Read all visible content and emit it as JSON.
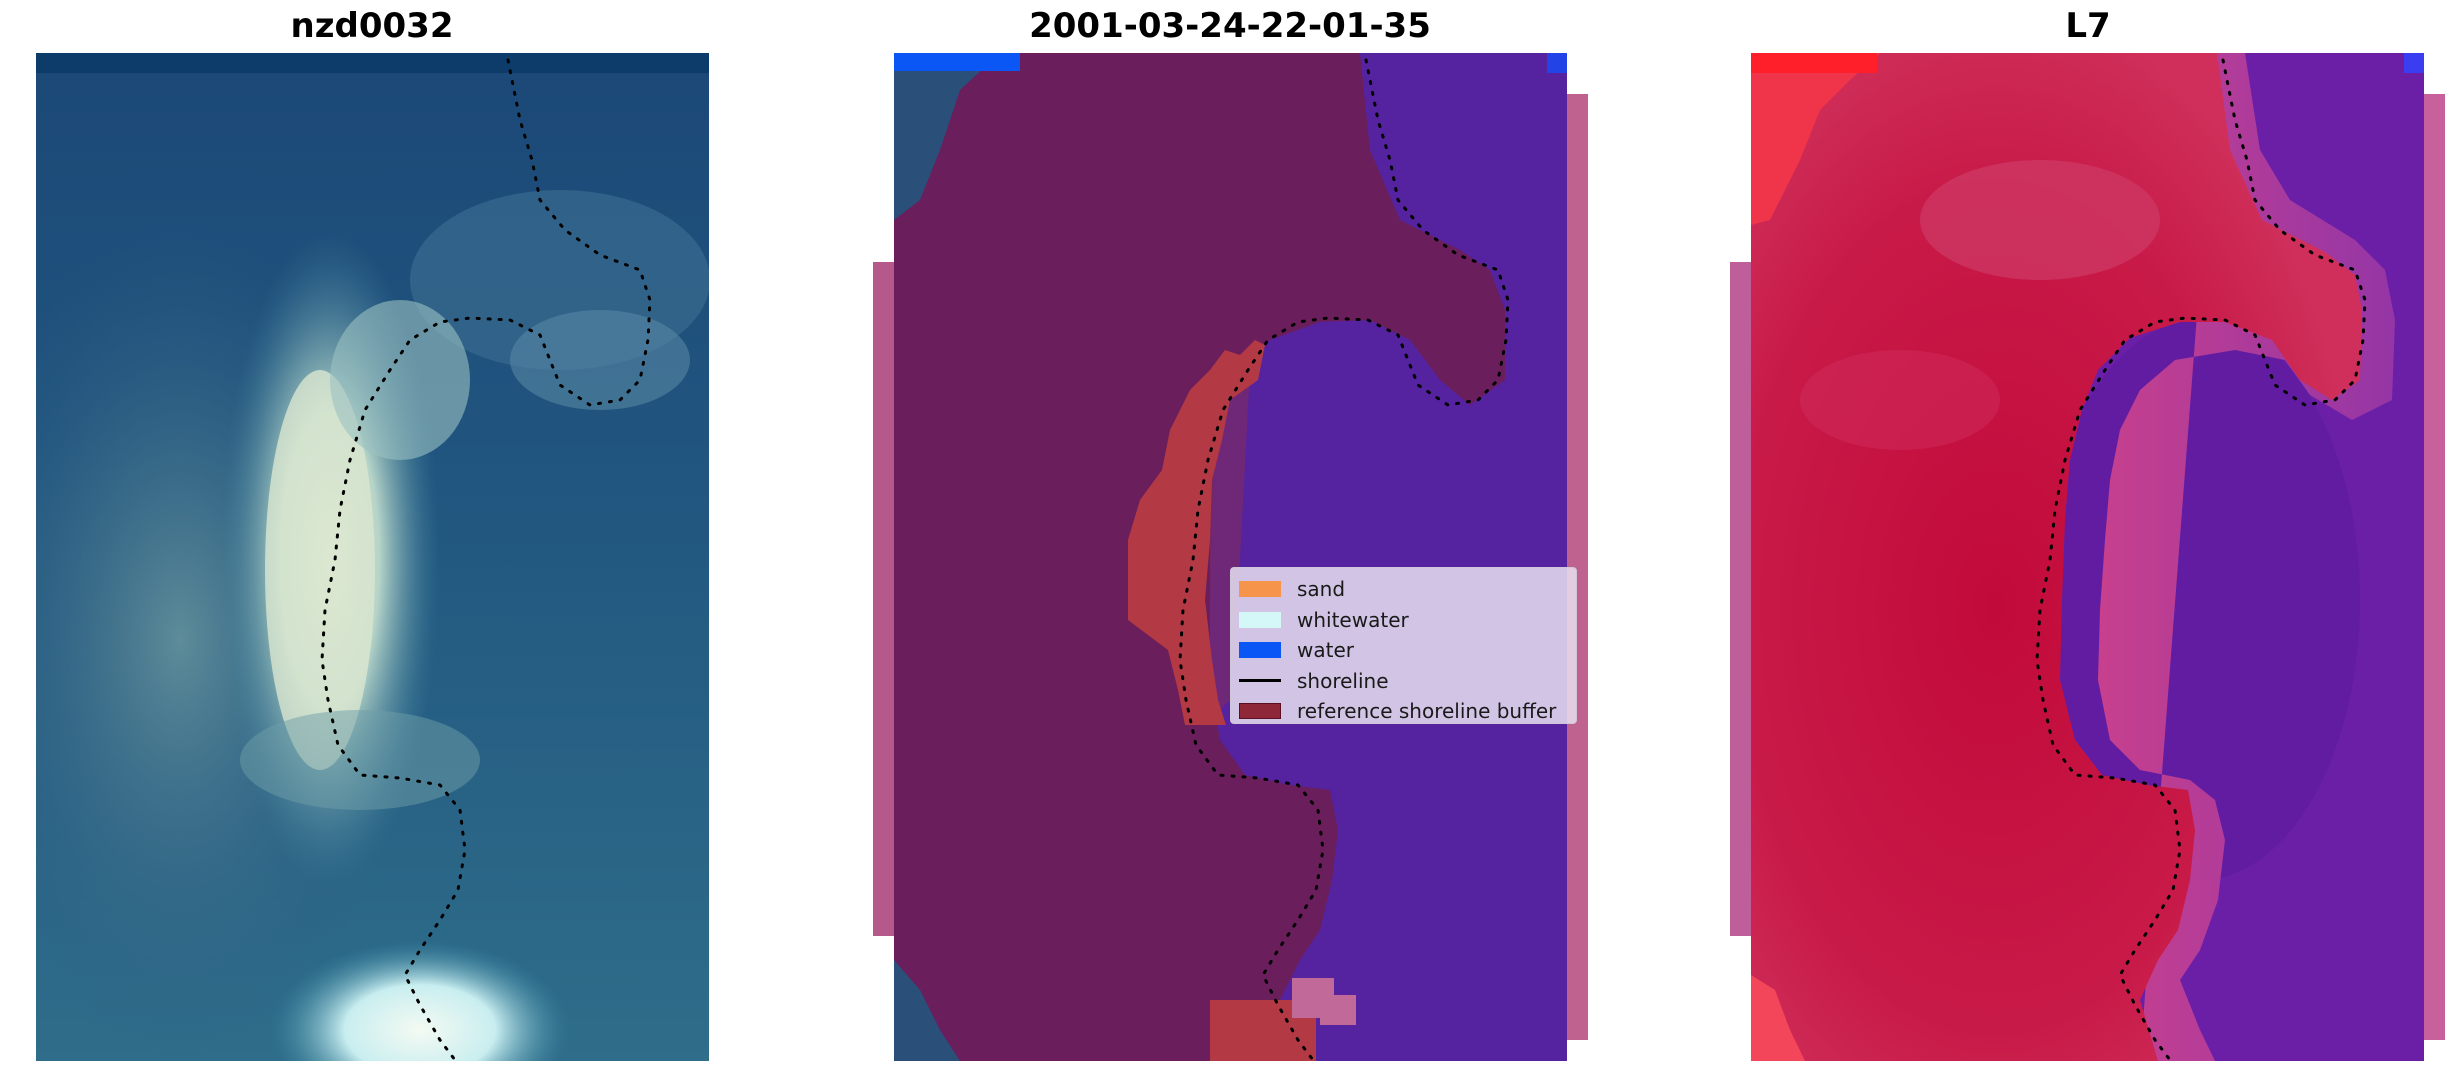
{
  "panels": [
    {
      "title": "nzd0032"
    },
    {
      "title": "2001-03-24-22-01-35"
    },
    {
      "title": "L7"
    }
  ],
  "legend": {
    "items": [
      {
        "label": "sand",
        "kind": "patch",
        "color": "#f5944a"
      },
      {
        "label": "whitewater",
        "kind": "patch",
        "color": "#d4f7f7"
      },
      {
        "label": "water",
        "kind": "patch",
        "color": "#0b57f5"
      },
      {
        "label": "shoreline",
        "kind": "line",
        "color": "#000000"
      },
      {
        "label": "reference shoreline buffer",
        "kind": "patch",
        "color": "#8e2738"
      }
    ]
  },
  "colors": {
    "rgb_water": "#1d4f7e",
    "rgb_bright_sand": "#dfe7cc",
    "classified_land": "#6a1e5c",
    "classified_water": "#5523a0",
    "buffer_overlay": "#b33a44",
    "index_land": "#c5103f",
    "index_water": "#6b1fa6"
  }
}
